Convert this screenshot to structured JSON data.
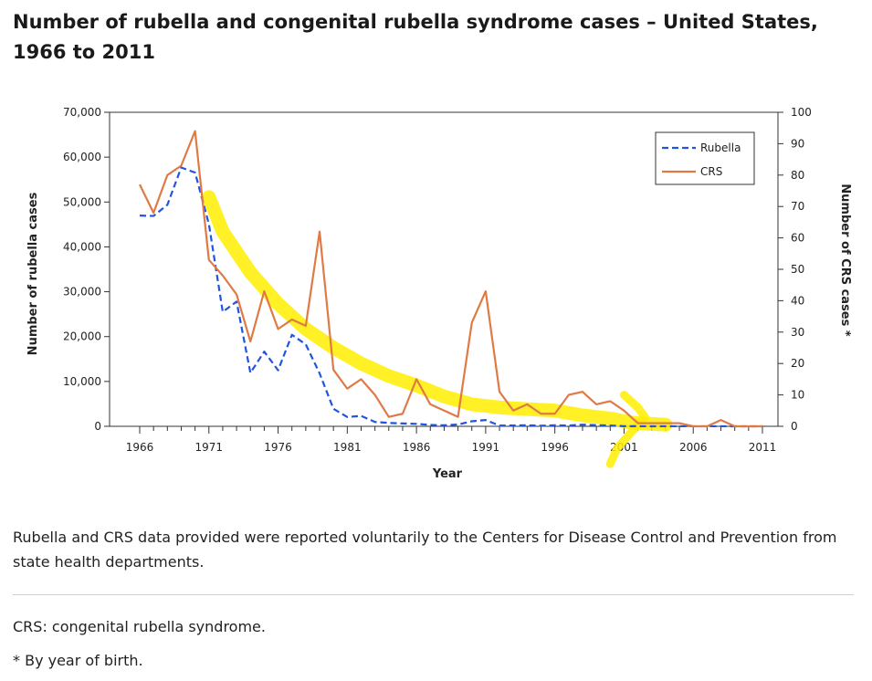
{
  "page": {
    "title": "Number of rubella and congenital rubella syndrome cases – United States, 1966 to 2011",
    "source_note": "Rubella and CRS data provided were reported voluntarily to the Centers for Disease Control and Prevention from state health departments.",
    "footnote_1": "CRS: congenital rubella syndrome.",
    "footnote_2": "* By year of birth."
  },
  "chart_data": {
    "type": "line",
    "xlabel": "Year",
    "ylabel": "Number of rubella cases",
    "ylabel_right": "Number of CRS cases *",
    "xlim": [
      1966,
      2011
    ],
    "ylim": [
      0,
      70000
    ],
    "ylim_right": [
      0,
      100
    ],
    "x_ticks": [
      "1966",
      "1971",
      "1976",
      "1981",
      "1986",
      "1991",
      "1996",
      "2001",
      "2006",
      "2011"
    ],
    "y_ticks": [
      "0",
      "10,000",
      "20,000",
      "30,000",
      "40,000",
      "50,000",
      "60,000",
      "70,000"
    ],
    "y_ticks_right": [
      "0",
      "10",
      "20",
      "30",
      "40",
      "50",
      "60",
      "70",
      "80",
      "90",
      "100"
    ],
    "legend_position": "top-right",
    "x": [
      1966,
      1967,
      1968,
      1969,
      1970,
      1971,
      1972,
      1973,
      1974,
      1975,
      1976,
      1977,
      1978,
      1979,
      1980,
      1981,
      1982,
      1983,
      1984,
      1985,
      1986,
      1987,
      1988,
      1989,
      1990,
      1991,
      1992,
      1993,
      1994,
      1995,
      1996,
      1997,
      1998,
      1999,
      2000,
      2001,
      2002,
      2003,
      2004,
      2005,
      2006,
      2007,
      2008,
      2009,
      2010,
      2011
    ],
    "series": [
      {
        "name": "Rubella",
        "axis": "left",
        "color": "#2255dd",
        "style": "dashed",
        "values": [
          46975,
          46888,
          49371,
          57686,
          56552,
          45086,
          25507,
          27804,
          11917,
          16652,
          12491,
          20395,
          18269,
          11795,
          3904,
          2077,
          2325,
          970,
          752,
          630,
          551,
          306,
          225,
          396,
          1125,
          1401,
          160,
          192,
          227,
          128,
          238,
          181,
          364,
          267,
          176,
          23,
          18,
          7,
          10,
          11,
          11,
          12,
          16,
          3,
          5,
          4
        ]
      },
      {
        "name": "CRS",
        "axis": "right",
        "color": "#e07a44",
        "style": "solid",
        "values": [
          77,
          68,
          80,
          83,
          94,
          53,
          48,
          42,
          27,
          43,
          31,
          34,
          32,
          62,
          18,
          12,
          15,
          10,
          3,
          4,
          15,
          7,
          5,
          3,
          33,
          43,
          11,
          5,
          7,
          4,
          4,
          10,
          11,
          7,
          8,
          5,
          1,
          1,
          1,
          1,
          0,
          0,
          2,
          0,
          0,
          0
        ]
      }
    ],
    "annotation": {
      "type": "highlighter-trend-stroke",
      "color": "#ffee00",
      "path": [
        [
          1971,
          73
        ],
        [
          1972,
          62
        ],
        [
          1974,
          49
        ],
        [
          1976,
          39
        ],
        [
          1978,
          31
        ],
        [
          1980,
          25
        ],
        [
          1982,
          20
        ],
        [
          1984,
          16
        ],
        [
          1986,
          13
        ],
        [
          1988,
          9.5
        ],
        [
          1990,
          7
        ],
        [
          1992,
          6
        ],
        [
          1994,
          5.5
        ],
        [
          1996,
          5
        ],
        [
          1998,
          3.5
        ],
        [
          2000,
          2.5
        ],
        [
          2001.5,
          1.2
        ],
        [
          2004,
          0.5
        ]
      ],
      "tick": [
        [
          2001,
          10
        ],
        [
          2002,
          6
        ],
        [
          2002.5,
          3
        ],
        [
          2001.5,
          -2
        ],
        [
          2000.5,
          -7
        ],
        [
          2000,
          -12
        ]
      ]
    }
  }
}
